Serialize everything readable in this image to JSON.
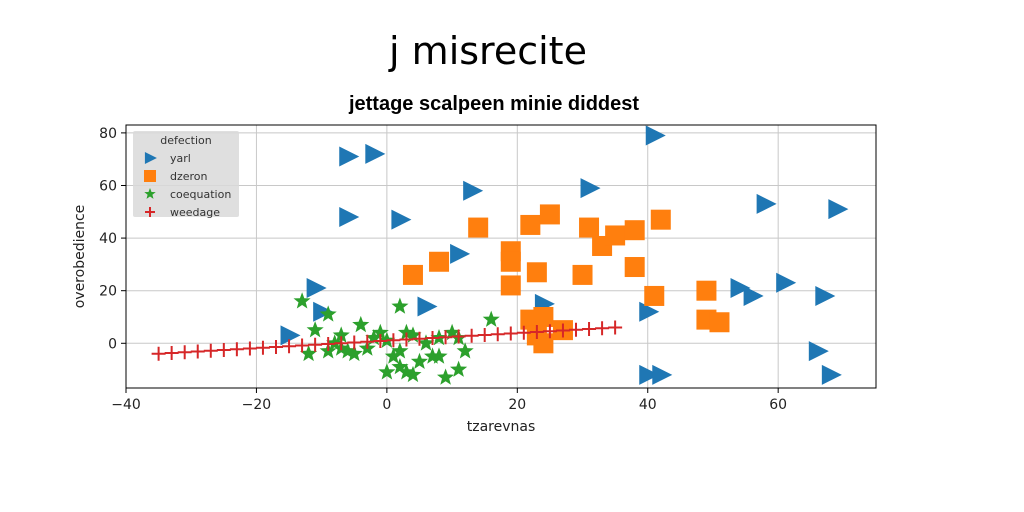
{
  "chart_data": {
    "type": "scatter",
    "suptitle": "j misrecite",
    "title": "jettage scalpeen minie diddest",
    "xlabel": "tzarevnas",
    "ylabel": "overobedience",
    "xlim": [
      -40,
      75
    ],
    "ylim": [
      -17,
      83
    ],
    "xticks": [
      -40,
      -20,
      0,
      20,
      40,
      60
    ],
    "yticks": [
      0,
      20,
      40,
      60,
      80
    ],
    "grid": true,
    "legend": {
      "title": "defection",
      "position": "top-left"
    },
    "series": [
      {
        "name": "yarl",
        "marker": "triangle-right",
        "color": "#1f77b4",
        "points": [
          [
            -6,
            71
          ],
          [
            -2,
            72
          ],
          [
            41,
            79
          ],
          [
            31,
            59
          ],
          [
            13,
            58
          ],
          [
            -6,
            48
          ],
          [
            2,
            47
          ],
          [
            58,
            53
          ],
          [
            69,
            51
          ],
          [
            11,
            34
          ],
          [
            -11,
            21
          ],
          [
            6,
            14
          ],
          [
            24,
            15
          ],
          [
            54,
            21
          ],
          [
            56,
            18
          ],
          [
            61,
            23
          ],
          [
            67,
            18
          ],
          [
            -15,
            3
          ],
          [
            -10,
            12
          ],
          [
            40,
            12
          ],
          [
            66,
            -3
          ],
          [
            68,
            -12
          ],
          [
            40,
            -12
          ],
          [
            42,
            -12
          ]
        ]
      },
      {
        "name": "dzeron",
        "marker": "square",
        "color": "#ff7f0e",
        "points": [
          [
            14,
            44
          ],
          [
            22,
            45
          ],
          [
            25,
            49
          ],
          [
            19,
            35
          ],
          [
            19,
            31
          ],
          [
            31,
            44
          ],
          [
            33,
            37
          ],
          [
            35,
            41
          ],
          [
            38,
            43
          ],
          [
            42,
            47
          ],
          [
            4,
            26
          ],
          [
            8,
            31
          ],
          [
            19,
            22
          ],
          [
            23,
            27
          ],
          [
            30,
            26
          ],
          [
            38,
            29
          ],
          [
            41,
            18
          ],
          [
            49,
            20
          ],
          [
            22,
            9
          ],
          [
            24,
            10
          ],
          [
            27,
            5
          ],
          [
            23,
            3
          ],
          [
            24,
            0
          ],
          [
            49,
            9
          ],
          [
            51,
            8
          ]
        ]
      },
      {
        "name": "coequation",
        "marker": "star",
        "color": "#2ca02c",
        "points": [
          [
            -13,
            16
          ],
          [
            -9,
            11
          ],
          [
            -11,
            5
          ],
          [
            -8,
            0
          ],
          [
            -7,
            3
          ],
          [
            -4,
            7
          ],
          [
            -2,
            2
          ],
          [
            0,
            1
          ],
          [
            2,
            14
          ],
          [
            3,
            4
          ],
          [
            6,
            0
          ],
          [
            4,
            3
          ],
          [
            -6,
            -3
          ],
          [
            -9,
            -3
          ],
          [
            -5,
            -4
          ],
          [
            -12,
            -4
          ],
          [
            -3,
            -2
          ],
          [
            1,
            -5
          ],
          [
            2,
            -9
          ],
          [
            3,
            -11
          ],
          [
            4,
            -12
          ],
          [
            0,
            -11
          ],
          [
            7,
            -5
          ],
          [
            8,
            -5
          ],
          [
            10,
            4
          ],
          [
            11,
            2
          ],
          [
            12,
            -3
          ],
          [
            9,
            -13
          ],
          [
            11,
            -10
          ],
          [
            16,
            9
          ],
          [
            8,
            2
          ],
          [
            -1,
            4
          ],
          [
            5,
            -7
          ],
          [
            -7,
            -2
          ],
          [
            2,
            -3
          ]
        ]
      },
      {
        "name": "weedage",
        "marker": "plus",
        "color": "#d62728",
        "x_start": -35,
        "x_end": 35,
        "count": 36,
        "y_at_start": -4,
        "y_at_end": 6
      }
    ]
  }
}
